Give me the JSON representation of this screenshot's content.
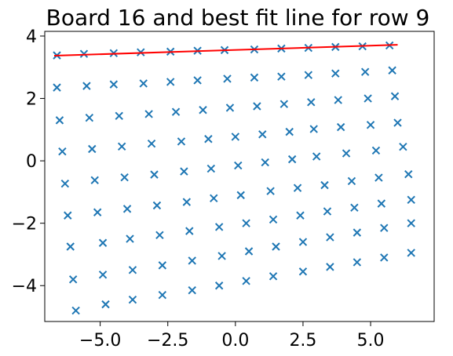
{
  "chart_data": {
    "type": "scatter",
    "title": "Board 16 and best fit line for row 9",
    "xlabel": "",
    "ylabel": "",
    "xlim": [
      -7.05,
      7.35
    ],
    "ylim": [
      -5.15,
      4.15
    ],
    "xticks": [
      -5.0,
      -2.5,
      0.0,
      2.5,
      5.0
    ],
    "xtick_labels": [
      "−5.0",
      "−2.5",
      "0.0",
      "2.5",
      "5.0"
    ],
    "yticks": [
      -4,
      -2,
      0,
      2,
      4
    ],
    "ytick_labels": [
      "−4",
      "−2",
      "0",
      "2",
      "4"
    ],
    "grid": false,
    "legend": false,
    "marker": "x",
    "marker_color": "#1f77b4",
    "line_color": "#ff0000",
    "rows": [
      {
        "x": [
          -6.6,
          -5.6,
          -4.5,
          -3.5,
          -2.4,
          -1.4,
          -0.4,
          0.7,
          1.7,
          2.7,
          3.7,
          4.7,
          5.7
        ],
        "y": [
          3.38,
          3.43,
          3.45,
          3.48,
          3.5,
          3.53,
          3.55,
          3.57,
          3.6,
          3.62,
          3.65,
          3.67,
          3.7
        ]
      },
      {
        "x": [
          -6.6,
          -5.5,
          -4.5,
          -3.4,
          -2.4,
          -1.4,
          -0.3,
          0.7,
          1.7,
          2.7,
          3.7,
          4.8,
          5.8
        ],
        "y": [
          2.35,
          2.4,
          2.45,
          2.48,
          2.53,
          2.58,
          2.63,
          2.67,
          2.7,
          2.75,
          2.8,
          2.85,
          2.9
        ]
      },
      {
        "x": [
          -6.5,
          -5.4,
          -4.3,
          -3.2,
          -2.2,
          -1.2,
          -0.2,
          0.8,
          1.8,
          2.8,
          3.8,
          4.9,
          5.9
        ],
        "y": [
          1.3,
          1.38,
          1.44,
          1.5,
          1.57,
          1.63,
          1.7,
          1.75,
          1.82,
          1.88,
          1.95,
          2.0,
          2.07
        ]
      },
      {
        "x": [
          -6.4,
          -5.3,
          -4.2,
          -3.1,
          -2.0,
          -1.0,
          0.0,
          1.0,
          2.0,
          2.9,
          3.9,
          5.0,
          6.0
        ],
        "y": [
          0.3,
          0.38,
          0.46,
          0.55,
          0.62,
          0.7,
          0.77,
          0.85,
          0.93,
          1.02,
          1.08,
          1.15,
          1.22
        ]
      },
      {
        "x": [
          -6.3,
          -5.2,
          -4.1,
          -3.0,
          -1.9,
          -0.9,
          0.1,
          1.1,
          2.1,
          3.0,
          4.1,
          5.2,
          6.2
        ],
        "y": [
          -0.73,
          -0.62,
          -0.53,
          -0.44,
          -0.34,
          -0.25,
          -0.15,
          -0.05,
          0.05,
          0.14,
          0.24,
          0.33,
          0.45
        ]
      },
      {
        "x": [
          -6.2,
          -5.1,
          -4.0,
          -2.9,
          -1.8,
          -0.8,
          0.2,
          1.3,
          2.3,
          3.3,
          4.3,
          5.3,
          6.4
        ],
        "y": [
          -1.75,
          -1.65,
          -1.54,
          -1.43,
          -1.32,
          -1.2,
          -1.1,
          -0.97,
          -0.87,
          -0.78,
          -0.65,
          -0.54,
          -0.43
        ]
      },
      {
        "x": [
          -6.1,
          -4.9,
          -3.9,
          -2.8,
          -1.7,
          -0.6,
          0.4,
          1.4,
          2.4,
          3.4,
          4.4,
          5.4,
          6.5
        ],
        "y": [
          -2.75,
          -2.63,
          -2.5,
          -2.38,
          -2.25,
          -2.12,
          -2.0,
          -1.88,
          -1.75,
          -1.62,
          -1.5,
          -1.37,
          -1.25
        ]
      },
      {
        "x": [
          -6.0,
          -4.9,
          -3.8,
          -2.7,
          -1.6,
          -0.5,
          0.5,
          1.5,
          2.5,
          3.5,
          4.5,
          5.5,
          6.5
        ],
        "y": [
          -3.8,
          -3.65,
          -3.5,
          -3.35,
          -3.2,
          -3.05,
          -2.9,
          -2.75,
          -2.6,
          -2.45,
          -2.3,
          -2.15,
          -2.0
        ]
      },
      {
        "x": [
          -5.9,
          -4.8,
          -3.8,
          -2.7,
          -1.6,
          -0.6,
          0.4,
          1.4,
          2.5,
          3.5,
          4.5,
          5.5,
          6.5
        ],
        "y": [
          -4.8,
          -4.6,
          -4.45,
          -4.3,
          -4.15,
          -4.0,
          -3.85,
          -3.7,
          -3.55,
          -3.4,
          -3.25,
          -3.1,
          -2.95
        ]
      }
    ],
    "best_fit": {
      "x": [
        -6.7,
        6.0
      ],
      "y": [
        3.37,
        3.72
      ]
    }
  }
}
